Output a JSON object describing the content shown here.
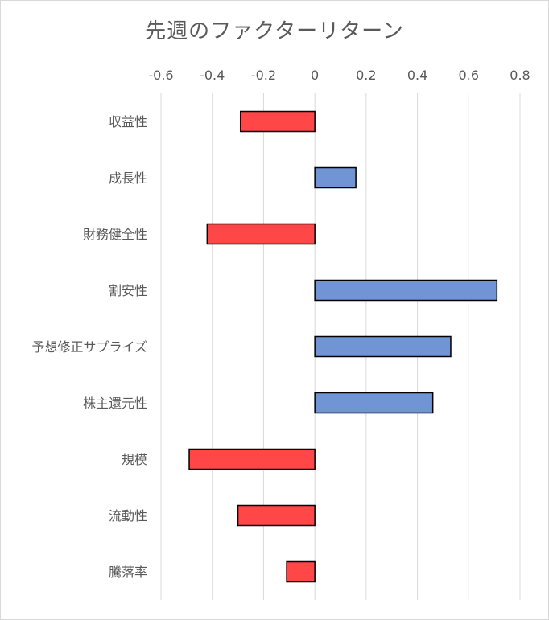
{
  "chart_data": {
    "type": "bar",
    "orientation": "horizontal",
    "title": "先週のファクターリターン",
    "categories": [
      "収益性",
      "成長性",
      "財務健全性",
      "割安性",
      "予想修正サプライズ",
      "株主還元性",
      "規模",
      "流動性",
      "騰落率"
    ],
    "values": [
      -0.29,
      0.16,
      -0.42,
      0.71,
      0.53,
      0.46,
      -0.49,
      -0.3,
      -0.11
    ],
    "xlim": [
      -0.6,
      0.8
    ],
    "xticks": [
      "-0.6",
      "-0.4",
      "-0.2",
      "0",
      "0.2",
      "0.4",
      "0.6",
      "0.8"
    ],
    "xtick_values": [
      -0.6,
      -0.4,
      -0.2,
      0,
      0.2,
      0.4,
      0.6,
      0.8
    ],
    "x_axis_position": "top",
    "grid": "vertical",
    "legend": "none",
    "colors": {
      "positive": "#7094d4",
      "negative": "#ff4747",
      "bar_outline": "#000000",
      "grid": "#d9d9d9",
      "text": "#595959"
    }
  }
}
